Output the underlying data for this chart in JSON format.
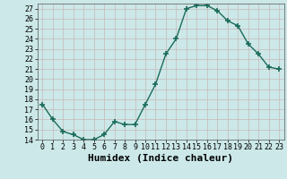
{
  "x": [
    0,
    1,
    2,
    3,
    4,
    5,
    6,
    7,
    8,
    9,
    10,
    11,
    12,
    13,
    14,
    15,
    16,
    17,
    18,
    19,
    20,
    21,
    22,
    23
  ],
  "y": [
    17.5,
    16.0,
    14.8,
    14.5,
    14.0,
    14.0,
    14.5,
    15.8,
    15.5,
    15.5,
    17.5,
    19.5,
    22.5,
    24.0,
    27.0,
    27.3,
    27.3,
    26.8,
    25.8,
    25.3,
    23.5,
    22.5,
    21.2,
    21.0
  ],
  "line_color": "#1a6b5a",
  "marker": "+",
  "marker_size": 4,
  "marker_lw": 1.2,
  "xlabel": "Humidex (Indice chaleur)",
  "ylim": [
    14,
    27.5
  ],
  "xlim": [
    -0.5,
    23.5
  ],
  "yticks": [
    14,
    15,
    16,
    17,
    18,
    19,
    20,
    21,
    22,
    23,
    24,
    25,
    26,
    27
  ],
  "xtick_labels": [
    "0",
    "1",
    "2",
    "3",
    "4",
    "5",
    "6",
    "7",
    "8",
    "9",
    "10",
    "11",
    "12",
    "13",
    "14",
    "15",
    "16",
    "17",
    "18",
    "19",
    "20",
    "21",
    "22",
    "23"
  ],
  "bg_color": "#cce8e8",
  "grid_color": "#b0d0d0",
  "tick_label_fontsize": 6,
  "xlabel_fontsize": 8
}
